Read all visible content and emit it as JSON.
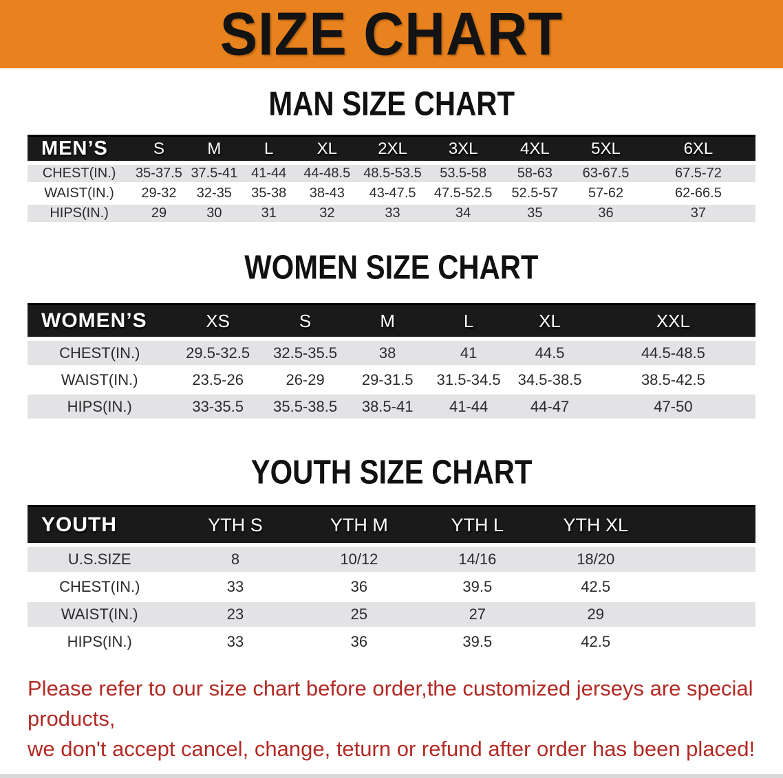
{
  "theme": {
    "banner_bg": "#E8821E",
    "header_bar": "#1A1A1A",
    "row_stripe": "#E3E3E5",
    "note_red": "#B22A24",
    "text_dark": "#2B2B2D"
  },
  "banner": {
    "title": "SIZE CHART"
  },
  "sections": [
    {
      "id": "men",
      "heading": "MAN SIZE CHART",
      "table": {
        "header": [
          "MEN’S",
          "S",
          "M",
          "L",
          "XL",
          "2XL",
          "3XL",
          "4XL",
          "5XL",
          "6XL"
        ],
        "rows": [
          {
            "label": "CHEST(IN.)",
            "values": [
              "35-37.5",
              "37.5-41",
              "41-44",
              "44-48.5",
              "48.5-53.5",
              "53.5-58",
              "58-63",
              "63-67.5",
              "67.5-72"
            ]
          },
          {
            "label": "WAIST(IN.)",
            "values": [
              "29-32",
              "32-35",
              "35-38",
              "38-43",
              "43-47.5",
              "47.5-52.5",
              "52.5-57",
              "57-62",
              "62-66.5"
            ]
          },
          {
            "label": "HIPS(IN.)",
            "values": [
              "29",
              "30",
              "31",
              "32",
              "33",
              "34",
              "35",
              "36",
              "37"
            ]
          }
        ]
      }
    },
    {
      "id": "women",
      "heading": "WOMEN SIZE CHART",
      "table": {
        "header": [
          "WOMEN’S",
          "XS",
          "S",
          "M",
          "L",
          "XL",
          "XXL"
        ],
        "rows": [
          {
            "label": "CHEST(IN.)",
            "values": [
              "29.5-32.5",
              "32.5-35.5",
              "38",
              "41",
              "44.5",
              "44.5-48.5"
            ]
          },
          {
            "label": "WAIST(IN.)",
            "values": [
              "23.5-26",
              "26-29",
              "29-31.5",
              "31.5-34.5",
              "34.5-38.5",
              "38.5-42.5"
            ]
          },
          {
            "label": "HIPS(IN.)",
            "values": [
              "33-35.5",
              "35.5-38.5",
              "38.5-41",
              "41-44",
              "44-47",
              "47-50"
            ]
          }
        ]
      }
    },
    {
      "id": "youth",
      "heading": "YOUTH SIZE CHART",
      "table": {
        "header": [
          "YOUTH",
          "YTH S",
          "YTH M",
          "YTH L",
          "YTH XL"
        ],
        "rows": [
          {
            "label": "U.S.SIZE",
            "values": [
              "8",
              "10/12",
              "14/16",
              "18/20"
            ]
          },
          {
            "label": "CHEST(IN.)",
            "values": [
              "33",
              "36",
              "39.5",
              "42.5"
            ]
          },
          {
            "label": "WAIST(IN.)",
            "values": [
              "23",
              "25",
              "27",
              "29"
            ]
          },
          {
            "label": "HIPS(IN.)",
            "values": [
              "33",
              "36",
              "39.5",
              "42.5"
            ]
          }
        ]
      }
    }
  ],
  "footnote": {
    "line1": "Please refer to our size chart before order,the customized jerseys are special products,",
    "line2": "we don't accept cancel, change, teturn or refund after order has been placed!"
  }
}
